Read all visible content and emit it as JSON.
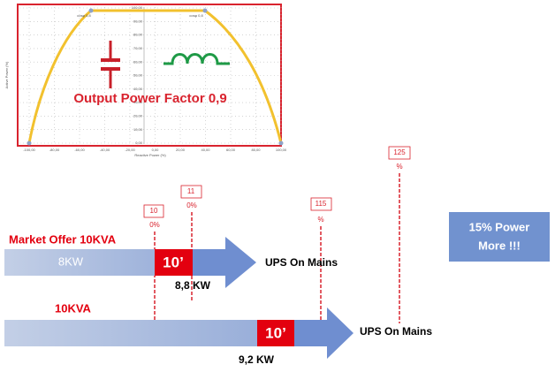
{
  "chart": {
    "title": "Output Power Factor 0,9",
    "x_label": "Reactive Power (%)",
    "y_label": "Active Power (%)",
    "xticks": [
      "-100,00",
      "-80,00",
      "-60,00",
      "-40,00",
      "-20,00",
      "0,00",
      "20,00",
      "40,00",
      "60,00",
      "80,00",
      "100,00"
    ],
    "yticks": [
      "100,00",
      "90,00",
      "80,00",
      "70,00",
      "60,00",
      "50,00",
      "40,00",
      "30,00",
      "20,00",
      "10,00",
      "0,00"
    ],
    "point_labels": [
      "cosφ 0,8",
      "cosφ 0,8"
    ]
  },
  "markers": [
    {
      "box": "10",
      "sub": "0%"
    },
    {
      "box": "11",
      "sub": "0%"
    },
    {
      "box": "115",
      "sub": "%"
    },
    {
      "box": "125",
      "sub": "%"
    }
  ],
  "rows": [
    {
      "label": "Market Offer 10KVA",
      "bar_text": "8KW",
      "box": "10’",
      "below": "8,8 KW",
      "result": "UPS On Mains"
    },
    {
      "label": "10KVA",
      "box": "10’",
      "below": "9,2 KW",
      "result": "UPS On Mains"
    }
  ],
  "callout": [
    "15% Power",
    "More !!!"
  ]
}
